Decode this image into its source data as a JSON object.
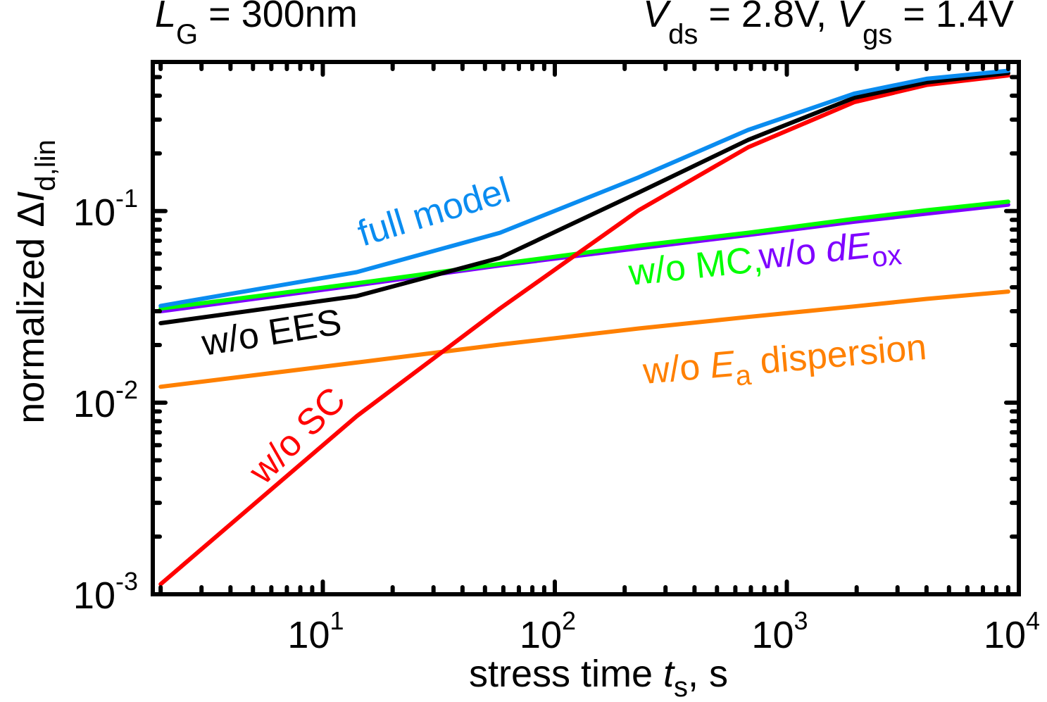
{
  "chart_data": {
    "type": "line",
    "title_left": {
      "var": "L",
      "sub": "G",
      "rest": " = 300nm"
    },
    "title_right": {
      "v1": "V",
      "v1_sub": "ds",
      "v1_rest": " = 2.8V, ",
      "v2": "V",
      "v2_sub": "gs",
      "v2_rest": " = 1.4V"
    },
    "xlabel": {
      "pre": "stress time ",
      "var": "t",
      "sub": "s",
      "post": ", s"
    },
    "ylabel": {
      "pre": "normalized Δ",
      "var": "I",
      "sub": "d,lin"
    },
    "x_scale": "log",
    "y_scale": "log",
    "xlim": [
      1.85,
      10000
    ],
    "ylim": [
      0.001,
      0.6
    ],
    "x_ticks": [
      {
        "base": "10",
        "exp": "1",
        "value": 10
      },
      {
        "base": "10",
        "exp": "2",
        "value": 100
      },
      {
        "base": "10",
        "exp": "3",
        "value": 1000
      },
      {
        "base": "10",
        "exp": "4",
        "value": 10000
      }
    ],
    "y_ticks": [
      {
        "base": "10",
        "exp": "-1",
        "value": 0.1
      },
      {
        "base": "10",
        "exp": "-2",
        "value": 0.01
      },
      {
        "base": "10",
        "exp": "-3",
        "value": 0.001
      }
    ],
    "grid": false,
    "x": [
      2,
      14,
      58,
      230,
      680,
      1950,
      4000,
      9000
    ],
    "series": [
      {
        "name": "full model",
        "color": "#0a8cf0",
        "values": [
          0.032,
          0.048,
          0.077,
          0.15,
          0.265,
          0.41,
          0.49,
          0.54
        ]
      },
      {
        "name": "w/o EES",
        "color": "#000000",
        "values": [
          0.026,
          0.036,
          0.057,
          0.125,
          0.235,
          0.39,
          0.47,
          0.525
        ]
      },
      {
        "name": "w/o SC",
        "color": "#ff0000",
        "values": [
          0.00113,
          0.0085,
          0.031,
          0.101,
          0.215,
          0.37,
          0.455,
          0.51
        ]
      },
      {
        "name": "w/o dEox",
        "color": "#7f00ff",
        "values": [
          0.03,
          0.041,
          0.052,
          0.064,
          0.075,
          0.088,
          0.097,
          0.108
        ]
      },
      {
        "name": "w/o MC",
        "color": "#00ff00",
        "values": [
          0.031,
          0.042,
          0.053,
          0.066,
          0.077,
          0.091,
          0.101,
          0.112
        ]
      },
      {
        "name": "w/o Ea dispersion",
        "color": "#ff8000",
        "values": [
          0.0121,
          0.0162,
          0.0201,
          0.0244,
          0.028,
          0.0318,
          0.0348,
          0.038
        ]
      }
    ],
    "annotations": [
      {
        "id": "full",
        "parts": [
          {
            "t": "full model"
          }
        ],
        "color": "#0a8cf0"
      },
      {
        "id": "ees",
        "parts": [
          {
            "t": "w/o EES"
          }
        ],
        "color": "#000000"
      },
      {
        "id": "sc",
        "parts": [
          {
            "t": "w/o SC"
          }
        ],
        "color": "#ff0000"
      },
      {
        "id": "mc",
        "parts": [
          {
            "t": "w/o MC,"
          }
        ],
        "color": "#00ff00"
      },
      {
        "id": "deox",
        "parts": [
          {
            "t": " w/o "
          },
          {
            "t": "dE",
            "italic": true
          },
          {
            "t": "ox",
            "sub": true
          }
        ],
        "color": "#7f00ff"
      },
      {
        "id": "ea",
        "parts": [
          {
            "t": "w/o "
          },
          {
            "t": "E",
            "italic": true
          },
          {
            "t": "a",
            "sub": true
          },
          {
            "t": " dispersion"
          }
        ],
        "color": "#ff8000"
      }
    ]
  }
}
